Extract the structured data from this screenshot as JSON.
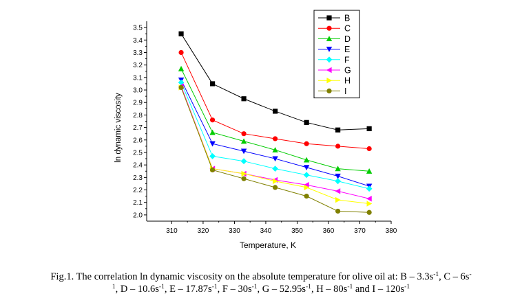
{
  "chart_data": {
    "type": "line",
    "xlabel": "Temperature, K",
    "ylabel": "ln dynamic viscosity",
    "xlim": [
      302,
      380
    ],
    "ylim": [
      1.95,
      3.55
    ],
    "xticks": [
      310,
      320,
      330,
      340,
      350,
      360,
      370,
      380
    ],
    "yticks": [
      2.0,
      2.1,
      2.2,
      2.3,
      2.4,
      2.5,
      2.6,
      2.7,
      2.8,
      2.9,
      3.0,
      3.1,
      3.2,
      3.3,
      3.4,
      3.5
    ],
    "x": [
      313,
      323,
      333,
      343,
      353,
      363,
      373
    ],
    "legend_position": "top-right",
    "series": [
      {
        "name": "B",
        "color": "#000000",
        "marker": "square",
        "values": [
          3.45,
          3.05,
          2.93,
          2.83,
          2.74,
          2.68,
          2.69
        ]
      },
      {
        "name": "C",
        "color": "#ff0000",
        "marker": "circle",
        "values": [
          3.3,
          2.76,
          2.65,
          2.61,
          2.57,
          2.55,
          2.53
        ]
      },
      {
        "name": "D",
        "color": "#00cc00",
        "marker": "triangle-up",
        "values": [
          3.17,
          2.66,
          2.59,
          2.52,
          2.44,
          2.37,
          2.35
        ]
      },
      {
        "name": "E",
        "color": "#0000ff",
        "marker": "triangle-down",
        "values": [
          3.08,
          2.57,
          2.51,
          2.45,
          2.38,
          2.31,
          2.23
        ]
      },
      {
        "name": "F",
        "color": "#00ffff",
        "marker": "diamond",
        "values": [
          3.06,
          2.47,
          2.43,
          2.37,
          2.32,
          2.27,
          2.21
        ]
      },
      {
        "name": "G",
        "color": "#ff00ff",
        "marker": "triangle-left",
        "values": [
          3.03,
          2.37,
          2.33,
          2.28,
          2.24,
          2.19,
          2.13
        ]
      },
      {
        "name": "H",
        "color": "#ffff00",
        "marker": "triangle-right",
        "values": [
          3.02,
          2.37,
          2.33,
          2.27,
          2.22,
          2.12,
          2.09
        ]
      },
      {
        "name": "I",
        "color": "#808000",
        "marker": "circle",
        "values": [
          3.02,
          2.36,
          2.29,
          2.22,
          2.15,
          2.03,
          2.02
        ]
      }
    ]
  },
  "caption": {
    "text1": "Fig.1. The correlation ln dynamic viscosity on the absolute temperature for olive oil at: B – 3.3s",
    "sup1": "-1",
    "text2": ", C – 6s",
    "sup2a": "-",
    "sup2b": "1",
    "text3": ", D – 10.6s",
    "sup3": "-1",
    "text4": ", E – 17.87s",
    "sup4": "-1",
    "text5": ", F – 30s",
    "sup5": "-1",
    "text6": ", G – 52.95s",
    "sup6": "-1",
    "text7": ", H – 80s",
    "sup7": "-1",
    "text8": " and I – 120s",
    "sup8": "-1"
  }
}
